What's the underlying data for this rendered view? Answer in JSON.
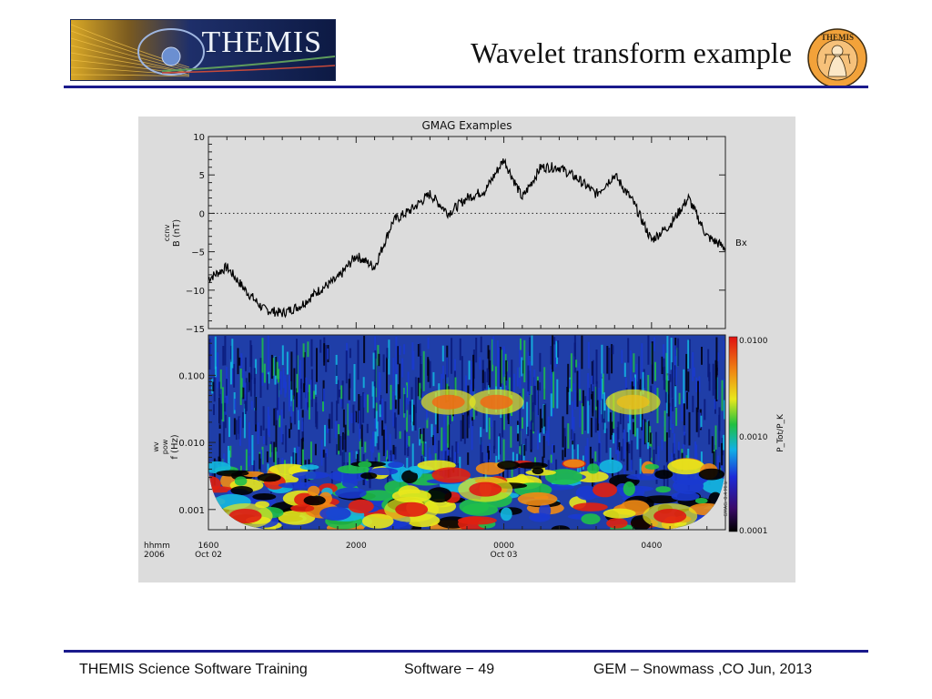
{
  "slide": {
    "title": "Wavelet transform example",
    "logo_text": "THEMIS",
    "emblem_text": "THEMIS",
    "accent_color": "#1a1a8c"
  },
  "footer": {
    "left": "THEMIS Science Software Training",
    "center": "Software − 49",
    "right": "GEM – Snowmass ,CO  Jun, 2013"
  },
  "chart_data": [
    {
      "type": "line",
      "title": "GMAG Examples",
      "ylabel": [
        "ccnv",
        "B (nT)"
      ],
      "series": [
        {
          "name": "Bx"
        }
      ],
      "ylim": [
        -15,
        10
      ],
      "yticks": [
        "10",
        "5",
        "0",
        "−5",
        "−10",
        "−15"
      ],
      "zero_line": "dotted",
      "x_hours": [
        16,
        16.5,
        17,
        17.5,
        18,
        18.5,
        19,
        19.5,
        20,
        20.5,
        21,
        21.5,
        22,
        22.5,
        23,
        23.5,
        24,
        24.5,
        25,
        25.5,
        26,
        26.5,
        27,
        27.5,
        28,
        28.5,
        29,
        29.5,
        30
      ],
      "y_nT": [
        -8.5,
        -7,
        -10,
        -12.5,
        -13,
        -12,
        -10,
        -8.5,
        -5.5,
        -7,
        -1,
        0.5,
        2.5,
        0,
        2,
        3,
        7,
        2,
        6,
        6,
        4.5,
        2.5,
        5,
        1.5,
        -3.5,
        -1.5,
        2,
        -3,
        -4.5
      ]
    },
    {
      "type": "heatmap",
      "ylabel": [
        "wv",
        "pow",
        "f (Hz)"
      ],
      "ylim": [
        0.0005,
        0.4
      ],
      "yscale": "log",
      "yticks": [
        "0.100",
        "0.010",
        "0.001"
      ],
      "colorbar": {
        "ticks": [
          "0.0100",
          "0.0010",
          "0.0001"
        ],
        "label": "P_Tot/P_K",
        "side_text": "GMAG: 0.4 MHz"
      },
      "xtick_labels": [
        {
          "hhmm": "1600",
          "date": "Oct 02"
        },
        {
          "hhmm": "2000",
          "date": ""
        },
        {
          "hhmm": "0000",
          "date": "Oct 03"
        },
        {
          "hhmm": "0400",
          "date": ""
        }
      ],
      "x_axis_header": {
        "line1": "hhmm",
        "line2": "2006"
      },
      "hot_regions": [
        {
          "t": 22.5,
          "f": 0.04,
          "level": "medium"
        },
        {
          "t": 23.8,
          "f": 0.04,
          "level": "medium"
        },
        {
          "t": 27.5,
          "f": 0.04,
          "level": "low"
        },
        {
          "t": 21.5,
          "f": 0.001,
          "level": "high"
        },
        {
          "t": 23.5,
          "f": 0.002,
          "level": "high"
        },
        {
          "t": 17,
          "f": 0.0008,
          "level": "high"
        },
        {
          "t": 28.5,
          "f": 0.0008,
          "level": "high"
        }
      ]
    }
  ]
}
